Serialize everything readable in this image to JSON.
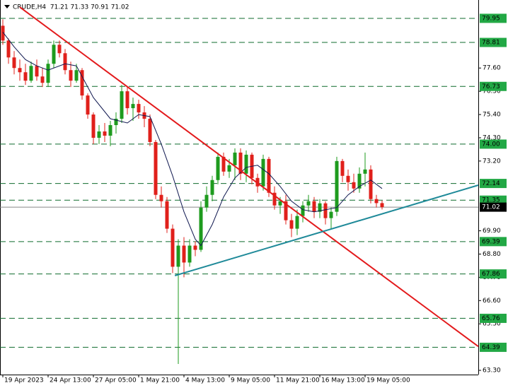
{
  "chart_data": {
    "type": "candlestick",
    "title": "CRUDE,H4  71.21 71.33 70.91 71.02",
    "up_color": "#1e9b1e",
    "down_color": "#e0201b",
    "open": [
      79.6,
      78.9,
      78.1,
      77.6,
      77.4,
      77.0,
      77.7,
      77.2,
      76.9,
      77.8,
      78.7,
      78.3,
      77.5,
      77.0,
      77.5,
      76.3,
      75.4,
      74.3,
      74.6,
      74.4,
      74.9,
      75.2,
      76.5,
      75.7,
      75.9,
      75.5,
      75.2,
      74.1,
      71.6,
      71.3,
      70.0,
      68.2,
      69.2,
      68.4,
      69.2,
      69.0,
      71.0,
      71.6,
      72.3,
      73.4,
      72.7,
      73.0,
      73.6,
      72.6,
      73.5,
      72.4,
      72.0,
      73.3,
      71.7,
      71.1,
      71.3,
      70.4,
      70.0,
      70.6,
      71.1,
      71.3,
      70.8,
      71.2,
      70.5,
      70.8,
      73.2,
      72.5,
      72.2,
      71.9,
      72.6,
      72.8,
      71.4,
      71.21
    ],
    "high": [
      79.9,
      79.0,
      78.4,
      78.0,
      77.8,
      77.9,
      78.0,
      77.6,
      78.0,
      78.9,
      78.9,
      78.5,
      77.9,
      77.8,
      77.6,
      76.4,
      75.5,
      74.9,
      75.0,
      75.1,
      75.5,
      76.8,
      76.7,
      76.2,
      76.1,
      75.8,
      75.4,
      74.2,
      72.0,
      71.5,
      70.2,
      69.5,
      69.6,
      69.5,
      69.4,
      71.3,
      72.0,
      72.5,
      73.6,
      73.6,
      73.3,
      73.8,
      73.8,
      73.7,
      73.6,
      72.6,
      73.5,
      73.4,
      72.0,
      71.5,
      71.6,
      70.7,
      70.9,
      71.3,
      71.6,
      71.5,
      71.4,
      71.3,
      71.0,
      73.4,
      73.3,
      72.8,
      72.6,
      72.9,
      73.6,
      73.0,
      71.6,
      71.33
    ],
    "low": [
      78.7,
      77.8,
      77.3,
      77.0,
      76.8,
      76.9,
      77.0,
      76.7,
      76.7,
      77.6,
      78.1,
      77.3,
      76.7,
      76.9,
      76.1,
      75.2,
      74.0,
      74.0,
      74.1,
      73.9,
      74.5,
      75.0,
      75.4,
      75.1,
      75.2,
      74.8,
      73.9,
      71.4,
      71.0,
      69.8,
      67.9,
      63.6,
      67.7,
      68.2,
      68.7,
      68.9,
      70.8,
      71.3,
      72.1,
      72.5,
      72.4,
      72.3,
      72.3,
      72.2,
      72.1,
      71.7,
      71.8,
      71.5,
      70.9,
      70.7,
      70.2,
      69.6,
      69.7,
      70.3,
      70.8,
      70.5,
      70.5,
      70.2,
      70.0,
      70.6,
      72.2,
      71.8,
      71.7,
      71.7,
      72.0,
      71.2,
      71.0,
      70.91
    ],
    "close": [
      78.9,
      78.1,
      77.6,
      77.4,
      77.0,
      77.7,
      77.2,
      76.9,
      77.8,
      78.7,
      78.3,
      77.5,
      77.0,
      77.5,
      76.3,
      75.4,
      74.3,
      74.6,
      74.4,
      74.9,
      75.2,
      76.5,
      75.7,
      75.9,
      75.5,
      75.2,
      74.1,
      71.6,
      71.3,
      70.0,
      68.2,
      69.2,
      68.4,
      69.2,
      69.0,
      71.0,
      71.6,
      72.3,
      73.4,
      72.7,
      73.0,
      73.6,
      72.6,
      73.5,
      72.4,
      72.0,
      73.3,
      71.7,
      71.1,
      71.3,
      70.4,
      70.0,
      70.6,
      71.1,
      71.3,
      70.8,
      71.2,
      70.5,
      70.8,
      73.2,
      72.5,
      72.2,
      71.9,
      72.6,
      72.8,
      71.4,
      71.21,
      71.02
    ],
    "ma": {
      "color": "#101850",
      "x": [
        0,
        2,
        4,
        6,
        8,
        11,
        13,
        16,
        19,
        22,
        24,
        26,
        28,
        30,
        32,
        34,
        35,
        37,
        39,
        41,
        43,
        45,
        47,
        49,
        51,
        53,
        55,
        57,
        59,
        61,
        63,
        65,
        67
      ],
      "values": [
        79.3,
        78.6,
        78.0,
        77.7,
        77.5,
        77.8,
        77.7,
        76.2,
        75.2,
        75.0,
        75.4,
        75.3,
        74.0,
        72.5,
        70.8,
        69.5,
        69.2,
        70.2,
        71.5,
        72.4,
        72.9,
        73.0,
        72.6,
        72.0,
        71.3,
        70.9,
        70.8,
        70.9,
        71.0,
        71.6,
        72.0,
        72.3,
        71.9
      ]
    },
    "trendlines": [
      {
        "color": "#e31a1c",
        "x": [
          3,
          84
        ],
        "values": [
          80.48,
          64.43
        ]
      },
      {
        "color": "#1f8a99",
        "x": [
          30.4,
          84
        ],
        "values": [
          67.78,
          72.06
        ]
      }
    ],
    "levels": [
      79.95,
      78.81,
      76.73,
      {
        "value": 74.0,
        "label": "74.00"
      },
      72.14,
      71.35,
      69.39,
      67.86,
      65.76,
      64.39
    ],
    "level_color": "#0f6b2c",
    "last_price": 71.02,
    "xlim": [
      -0.5,
      84
    ],
    "ylim": [
      63.1,
      80.65
    ],
    "yticks": [
      {
        "value": 77.6,
        "label": "77.60"
      },
      {
        "value": 76.5,
        "label": "76.50"
      },
      {
        "value": 75.4,
        "label": "75.40"
      },
      {
        "value": 74.3,
        "label": "74.30"
      },
      {
        "value": 73.2,
        "label": "73.20"
      },
      {
        "value": 69.9,
        "label": "69.90"
      },
      {
        "value": 68.8,
        "label": "68.80"
      },
      {
        "value": 67.7,
        "label": "67.70"
      },
      {
        "value": 66.6,
        "label": "66.60"
      },
      {
        "value": 65.5,
        "label": "65.50"
      },
      {
        "value": 63.3,
        "label": "63.30"
      }
    ],
    "xticks": [
      {
        "value": 0,
        "label": "19 Apr 2023"
      },
      {
        "value": 8,
        "label": "24 Apr 13:00"
      },
      {
        "value": 16,
        "label": "27 Apr 05:00"
      },
      {
        "value": 24,
        "label": "1 May 21:00"
      },
      {
        "value": 32,
        "label": "4 May 13:00"
      },
      {
        "value": 40,
        "label": "9 May 05:00"
      },
      {
        "value": 48,
        "label": "11 May 21:00"
      },
      {
        "value": 56,
        "label": "16 May 13:00"
      },
      {
        "value": 64,
        "label": "19 May 05:00"
      }
    ]
  }
}
